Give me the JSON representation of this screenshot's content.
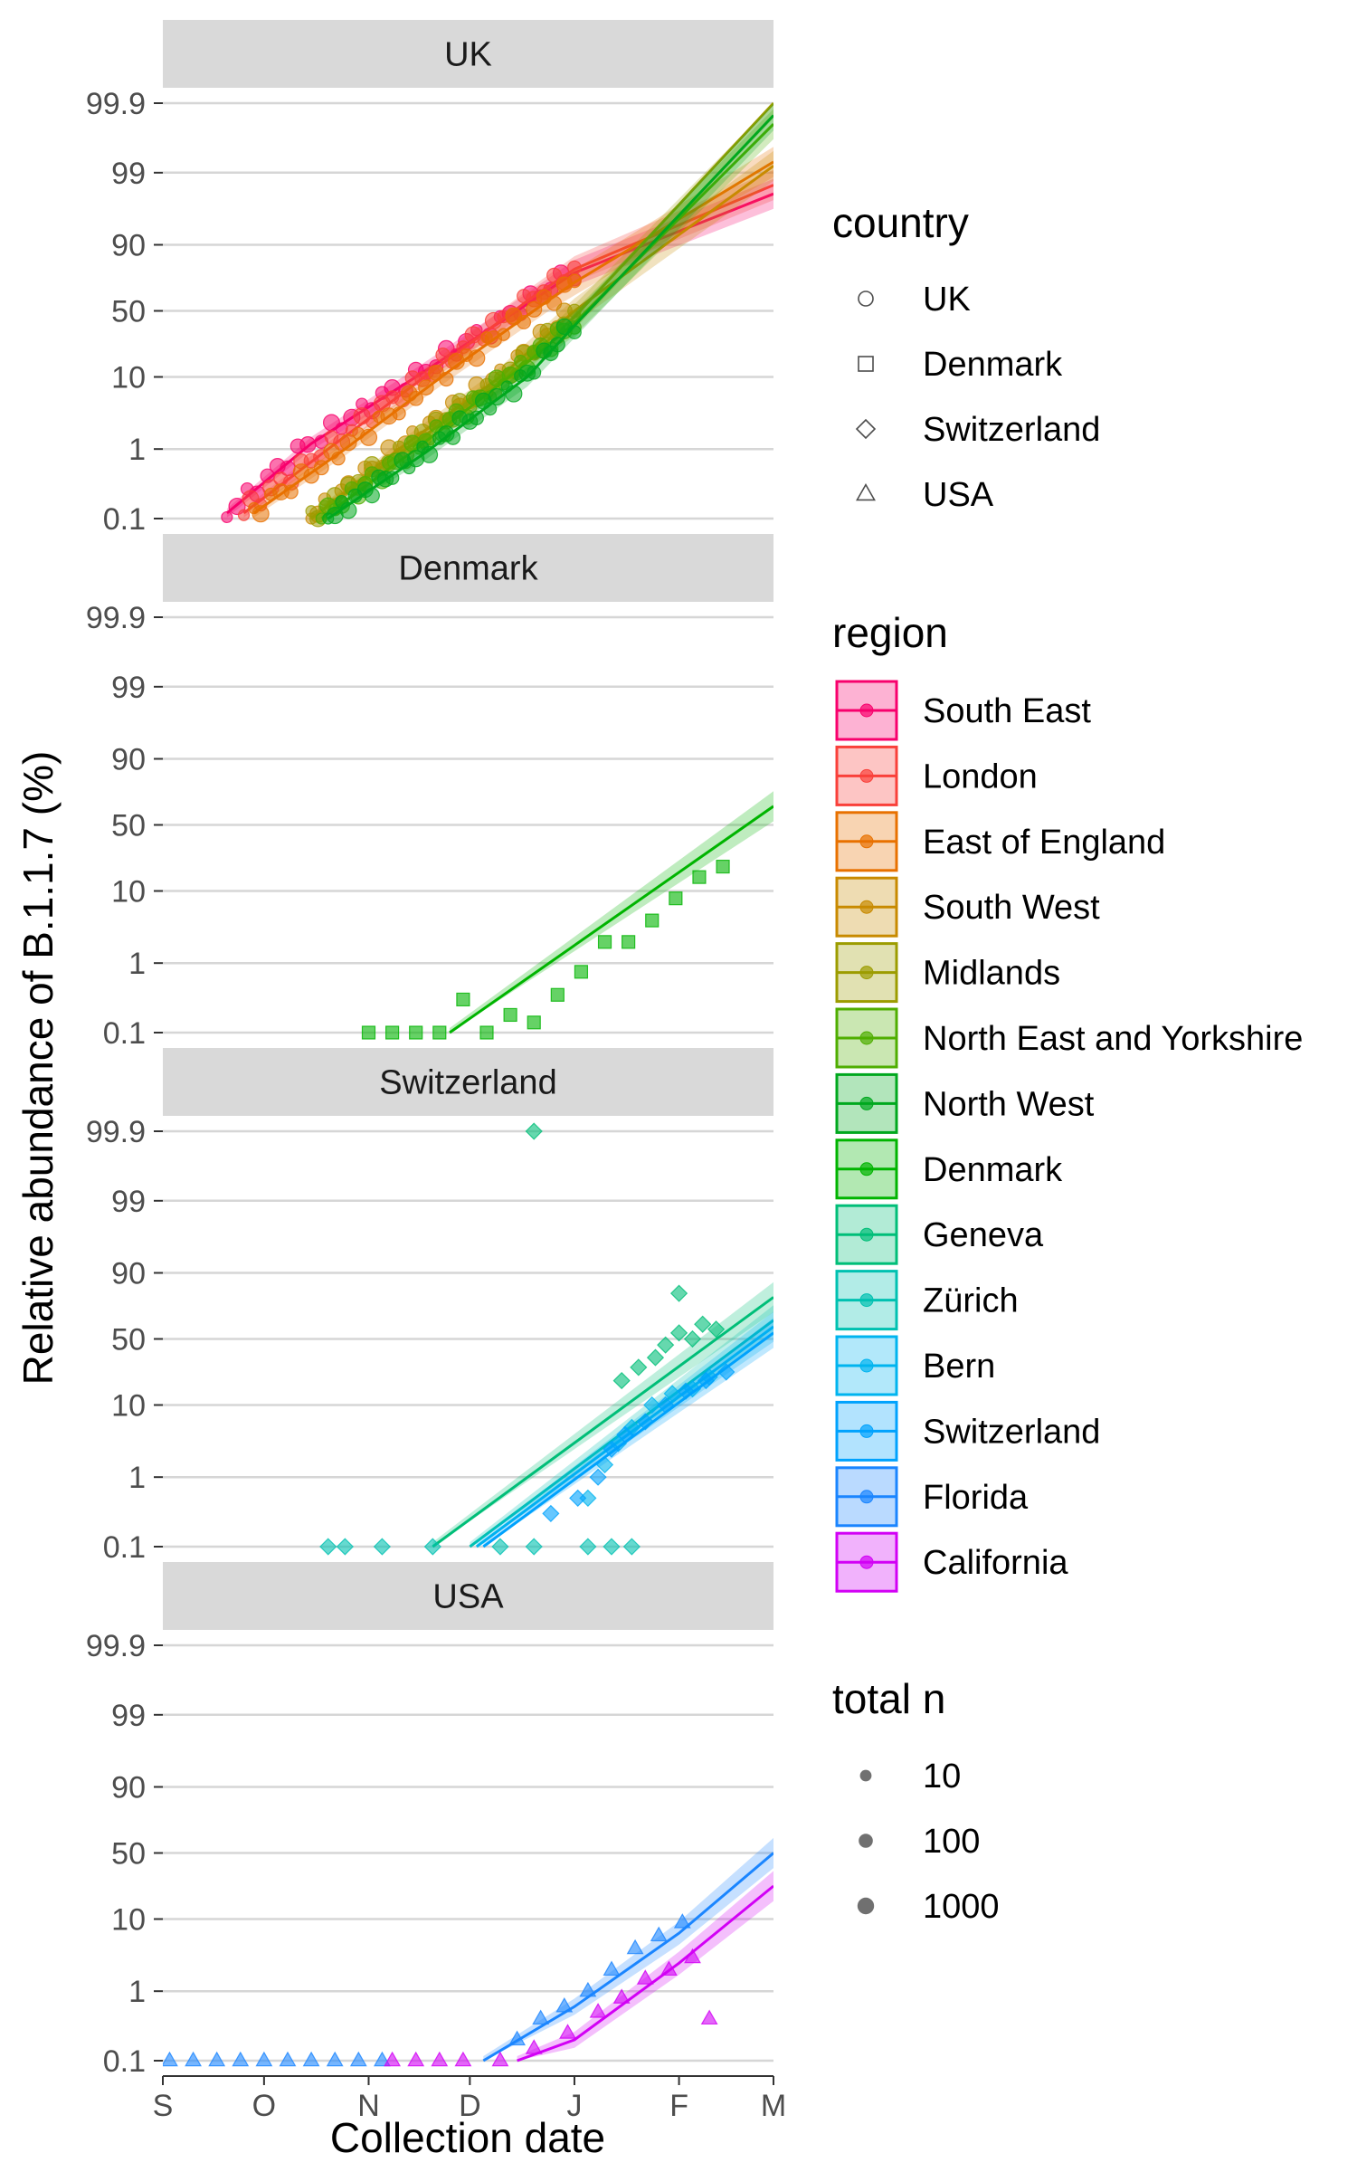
{
  "chart_data": {
    "type": "scatter",
    "ylabel": "Relative abundance of B.1.1.7 (%)",
    "xlabel": "Collection date",
    "x_ticks": [
      {
        "date": "2020-09-01",
        "label": "S"
      },
      {
        "date": "2020-10-01",
        "label": "O"
      },
      {
        "date": "2020-11-01",
        "label": "N"
      },
      {
        "date": "2020-12-01",
        "label": "D"
      },
      {
        "date": "2021-01-01",
        "label": "J"
      },
      {
        "date": "2021-02-01",
        "label": "F"
      },
      {
        "date": "2021-03-01",
        "label": "M"
      }
    ],
    "xlim": [
      "2020-09-01",
      "2021-03-01"
    ],
    "y_scale": "logit",
    "ylim": [
      0.1,
      99.9
    ],
    "y_ticks": [
      {
        "value": 0.1,
        "label": "0.1"
      },
      {
        "value": 1,
        "label": "1"
      },
      {
        "value": 10,
        "label": "10"
      },
      {
        "value": 50,
        "label": "50"
      },
      {
        "value": 90,
        "label": "90"
      },
      {
        "value": 99,
        "label": "99"
      },
      {
        "value": 99.9,
        "label": "99.9"
      }
    ],
    "grid": "horizontal-major",
    "legend_placement": "right",
    "panels": [
      {
        "title": "UK",
        "series": [
          {
            "region": "South East",
            "color": "#f8006c",
            "shape": "circle",
            "fit": [
              [
                "2020-09-20",
                0.12
              ],
              [
                "2020-10-15",
                1.2
              ],
              [
                "2020-11-15",
                10
              ],
              [
                "2020-12-15",
                50
              ],
              [
                "2021-01-01",
                78
              ],
              [
                "2021-03-01",
                98
              ]
            ]
          },
          {
            "region": "London",
            "color": "#f9403a",
            "shape": "circle",
            "fit": [
              [
                "2020-09-25",
                0.12
              ],
              [
                "2020-10-20",
                1.0
              ],
              [
                "2020-11-20",
                12
              ],
              [
                "2020-12-20",
                62
              ],
              [
                "2021-01-01",
                80
              ],
              [
                "2021-03-01",
                98.5
              ]
            ]
          },
          {
            "region": "East of England",
            "color": "#e87100",
            "shape": "circle",
            "fit": [
              [
                "2020-09-28",
                0.12
              ],
              [
                "2020-10-25",
                1.0
              ],
              [
                "2020-11-25",
                12
              ],
              [
                "2020-12-25",
                60
              ],
              [
                "2021-01-01",
                72
              ],
              [
                "2021-03-01",
                99.3
              ]
            ]
          },
          {
            "region": "South West",
            "color": "#c88a00",
            "shape": "circle",
            "fit": [
              [
                "2020-10-15",
                0.1
              ],
              [
                "2020-11-10",
                1.0
              ],
              [
                "2020-12-10",
                10
              ],
              [
                "2021-01-01",
                50
              ],
              [
                "2021-03-01",
                99.2
              ]
            ]
          },
          {
            "region": "Midlands",
            "color": "#9c9c00",
            "shape": "circle",
            "fit": [
              [
                "2020-10-15",
                0.1
              ],
              [
                "2020-11-12",
                1.0
              ],
              [
                "2020-12-12",
                10
              ],
              [
                "2021-01-01",
                45
              ],
              [
                "2021-03-01",
                99.9
              ]
            ]
          },
          {
            "region": "North East and Yorkshire",
            "color": "#4fae00",
            "shape": "circle",
            "fit": [
              [
                "2020-10-18",
                0.1
              ],
              [
                "2020-11-15",
                1.0
              ],
              [
                "2020-12-15",
                12
              ],
              [
                "2021-01-01",
                40
              ],
              [
                "2021-03-01",
                99.8
              ]
            ]
          },
          {
            "region": "North West",
            "color": "#00a81e",
            "shape": "circle",
            "fit": [
              [
                "2020-10-20",
                0.1
              ],
              [
                "2020-11-18",
                0.9
              ],
              [
                "2020-12-18",
                10
              ],
              [
                "2021-01-01",
                38
              ],
              [
                "2021-03-01",
                99.85
              ]
            ]
          }
        ]
      },
      {
        "title": "Denmark",
        "series": [
          {
            "region": "Denmark",
            "color": "#00b400",
            "shape": "square",
            "fit": [
              [
                "2020-11-25",
                0.1
              ],
              [
                "2021-03-01",
                65
              ]
            ],
            "points": [
              [
                "2020-11-01",
                0.1
              ],
              [
                "2020-11-08",
                0.1
              ],
              [
                "2020-11-15",
                0.1
              ],
              [
                "2020-11-22",
                0.1
              ],
              [
                "2020-11-29",
                0.3
              ],
              [
                "2020-12-06",
                0.1
              ],
              [
                "2020-12-13",
                0.18
              ],
              [
                "2020-12-20",
                0.14
              ],
              [
                "2020-12-27",
                0.35
              ],
              [
                "2021-01-03",
                0.75
              ],
              [
                "2021-01-10",
                2.0
              ],
              [
                "2021-01-17",
                2.0
              ],
              [
                "2021-01-24",
                4.0
              ],
              [
                "2021-01-31",
                8.0
              ],
              [
                "2021-02-07",
                15
              ],
              [
                "2021-02-14",
                20
              ]
            ]
          }
        ]
      },
      {
        "title": "Switzerland",
        "series": [
          {
            "region": "Geneva",
            "color": "#00be78",
            "shape": "diamond",
            "fit": [
              [
                "2020-11-20",
                0.1
              ],
              [
                "2021-03-01",
                80
              ]
            ],
            "points": [
              [
                "2020-12-20",
                99.9
              ],
              [
                "2021-01-15",
                20
              ],
              [
                "2021-01-20",
                28
              ],
              [
                "2021-01-25",
                35
              ],
              [
                "2021-01-28",
                45
              ],
              [
                "2021-02-01",
                55
              ],
              [
                "2021-02-05",
                50
              ],
              [
                "2021-02-08",
                62
              ],
              [
                "2021-02-12",
                58
              ],
              [
                "2021-02-01",
                82
              ]
            ]
          },
          {
            "region": "Zürich",
            "color": "#00c1b1",
            "shape": "diamond",
            "fit": [
              [
                "2020-12-01",
                0.1
              ],
              [
                "2021-03-01",
                65
              ]
            ],
            "points": [
              [
                "2020-10-20",
                0.1
              ],
              [
                "2020-10-25",
                0.1
              ],
              [
                "2020-11-05",
                0.1
              ],
              [
                "2020-11-20",
                0.1
              ],
              [
                "2020-12-10",
                0.1
              ],
              [
                "2020-12-20",
                0.1
              ],
              [
                "2021-01-05",
                0.1
              ],
              [
                "2021-01-12",
                0.1
              ],
              [
                "2021-01-18",
                0.1
              ]
            ]
          },
          {
            "region": "Bern",
            "color": "#00b4ef",
            "shape": "diamond",
            "fit": [
              [
                "2020-12-03",
                0.1
              ],
              [
                "2021-03-01",
                60
              ]
            ],
            "points": [
              [
                "2021-01-05",
                0.5
              ],
              [
                "2021-01-10",
                1.5
              ],
              [
                "2021-01-14",
                3.0
              ],
              [
                "2021-01-18",
                5.0
              ],
              [
                "2021-01-24",
                10
              ],
              [
                "2021-01-30",
                14
              ],
              [
                "2021-02-05",
                16
              ],
              [
                "2021-02-10",
                22
              ]
            ]
          },
          {
            "region": "Switzerland",
            "color": "#00a2fd",
            "shape": "diamond",
            "fit": [
              [
                "2020-12-05",
                0.1
              ],
              [
                "2021-03-01",
                55
              ]
            ],
            "points": [
              [
                "2020-12-25",
                0.3
              ],
              [
                "2021-01-02",
                0.5
              ],
              [
                "2021-01-08",
                1.0
              ],
              [
                "2021-01-12",
                2.5
              ],
              [
                "2021-01-16",
                4.0
              ],
              [
                "2021-01-22",
                6.0
              ],
              [
                "2021-01-28",
                10
              ],
              [
                "2021-02-03",
                15
              ],
              [
                "2021-02-09",
                20
              ],
              [
                "2021-02-15",
                25
              ]
            ]
          }
        ]
      },
      {
        "title": "USA",
        "series": [
          {
            "region": "Florida",
            "color": "#1a85ff",
            "shape": "triangle",
            "fit": [
              [
                "2020-12-05",
                0.1
              ],
              [
                "2021-01-01",
                0.6
              ],
              [
                "2021-02-01",
                6.5
              ],
              [
                "2021-03-01",
                50
              ]
            ],
            "points": [
              [
                "2020-09-03",
                0.1
              ],
              [
                "2020-09-10",
                0.1
              ],
              [
                "2020-09-17",
                0.1
              ],
              [
                "2020-09-24",
                0.1
              ],
              [
                "2020-10-01",
                0.1
              ],
              [
                "2020-10-08",
                0.1
              ],
              [
                "2020-10-15",
                0.1
              ],
              [
                "2020-10-22",
                0.1
              ],
              [
                "2020-10-29",
                0.1
              ],
              [
                "2020-11-05",
                0.1
              ],
              [
                "2020-12-15",
                0.2
              ],
              [
                "2020-12-22",
                0.4
              ],
              [
                "2020-12-29",
                0.6
              ],
              [
                "2021-01-05",
                1.0
              ],
              [
                "2021-01-12",
                2.0
              ],
              [
                "2021-01-19",
                4.0
              ],
              [
                "2021-01-26",
                6.0
              ],
              [
                "2021-02-02",
                9.0
              ]
            ]
          },
          {
            "region": "California",
            "color": "#d200f5",
            "shape": "triangle",
            "fit": [
              [
                "2020-12-15",
                0.1
              ],
              [
                "2021-01-01",
                0.2
              ],
              [
                "2021-02-01",
                2.5
              ],
              [
                "2021-03-01",
                25
              ]
            ],
            "points": [
              [
                "2020-11-08",
                0.1
              ],
              [
                "2020-11-15",
                0.1
              ],
              [
                "2020-11-22",
                0.1
              ],
              [
                "2020-11-29",
                0.1
              ],
              [
                "2020-12-10",
                0.1
              ],
              [
                "2020-12-20",
                0.15
              ],
              [
                "2020-12-30",
                0.25
              ],
              [
                "2021-01-08",
                0.5
              ],
              [
                "2021-01-15",
                0.8
              ],
              [
                "2021-01-22",
                1.5
              ],
              [
                "2021-01-29",
                2.0
              ],
              [
                "2021-02-05",
                3.0
              ],
              [
                "2021-02-10",
                0.4
              ]
            ]
          }
        ]
      }
    ],
    "legend": {
      "country": {
        "title": "country",
        "items": [
          {
            "label": "UK",
            "shape": "circle"
          },
          {
            "label": "Denmark",
            "shape": "square"
          },
          {
            "label": "Switzerland",
            "shape": "diamond"
          },
          {
            "label": "USA",
            "shape": "triangle"
          }
        ]
      },
      "region": {
        "title": "region",
        "items": [
          {
            "label": "South East",
            "color": "#f8006c"
          },
          {
            "label": "London",
            "color": "#f9403a"
          },
          {
            "label": "East of England",
            "color": "#e87100"
          },
          {
            "label": "South West",
            "color": "#c88a00"
          },
          {
            "label": "Midlands",
            "color": "#9c9c00"
          },
          {
            "label": "North East and Yorkshire",
            "color": "#4fae00"
          },
          {
            "label": "North West",
            "color": "#00a81e"
          },
          {
            "label": "Denmark",
            "color": "#00b400"
          },
          {
            "label": "Geneva",
            "color": "#00be78"
          },
          {
            "label": "Zürich",
            "color": "#00c1b1"
          },
          {
            "label": "Bern",
            "color": "#00b4ef"
          },
          {
            "label": "Switzerland",
            "color": "#00a2fd"
          },
          {
            "label": "Florida",
            "color": "#1a85ff"
          },
          {
            "label": "California",
            "color": "#d200f5"
          }
        ]
      },
      "total_n": {
        "title": "total n",
        "items": [
          {
            "label": "10",
            "value": 10
          },
          {
            "label": "100",
            "value": 100
          },
          {
            "label": "1000",
            "value": 1000
          }
        ]
      }
    }
  }
}
